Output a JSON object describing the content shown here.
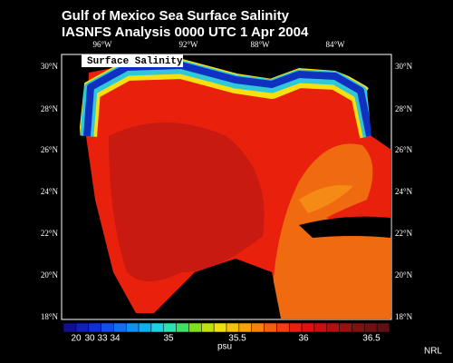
{
  "title": "Gulf of Mexico Sea Surface Salinity",
  "subtitle": "IASNFS Analysis  0000 UTC  1 Apr 2004",
  "panel_label": "Surface Salinity",
  "lon_labels": [
    "96°W",
    "92°W",
    "88°W",
    "84°W"
  ],
  "lat_labels": [
    "30°N",
    "28°N",
    "26°N",
    "24°N",
    "22°N",
    "20°N",
    "18°N"
  ],
  "colorbar": {
    "labels": [
      "20",
      "30",
      "33",
      "34",
      "35",
      "35.5",
      "36",
      "36.5"
    ],
    "unit": "psu"
  },
  "credit": "NRL"
}
